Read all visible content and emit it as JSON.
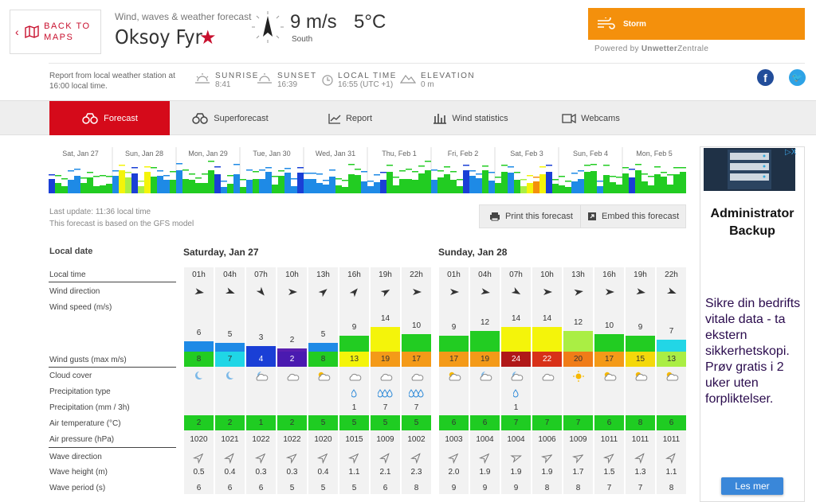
{
  "header": {
    "back_label": "BACK TO MAPS",
    "subtitle": "Wind, waves & weather forecast",
    "spot_name": "Oksoy Fyr",
    "wind_speed": "9 m/s",
    "temperature": "5°C",
    "wind_direction": "South",
    "storm_label": "Storm",
    "powered_by": "Powered by",
    "powered_brand_bold": "Unwetter",
    "powered_brand": "Zentrale"
  },
  "info": {
    "report": "Report from local weather station at 16:00 local time.",
    "sunrise_title": "SUNRISE",
    "sunrise_value": "8:41",
    "sunset_title": "SUNSET",
    "sunset_value": "16:39",
    "localtime_title": "LOCAL TIME",
    "localtime_value": "16:55 (UTC +1)",
    "elevation_title": "ELEVATION",
    "elevation_value": "0 m"
  },
  "tabs": [
    "Forecast",
    "Superforecast",
    "Report",
    "Wind statistics",
    "Webcams"
  ],
  "overview_days": [
    "Sat, Jan 27",
    "Sun, Jan 28",
    "Mon, Jan 29",
    "Tue, Jan 30",
    "Wed, Jan 31",
    "Thu, Feb 1",
    "Fri, Feb 2",
    "Sat, Feb 3",
    "Sun, Feb 4",
    "Mon, Feb 5"
  ],
  "meta": {
    "last_update": "Last update: 11:36 local time",
    "model": "This forecast is based on the GFS model",
    "print_label": "Print this forecast",
    "embed_label": "Embed this forecast"
  },
  "table": {
    "local_date_label": "Local date",
    "days": [
      "Saturday, Jan 27",
      "Sunday, Jan 28"
    ],
    "labels": {
      "local_time": "Local time",
      "wind_direction": "Wind direction",
      "wind_speed": "Wind speed  (m/s)",
      "wind_gusts": "Wind gusts  (max m/s)",
      "cloud_cover": "Cloud cover",
      "precip_type": "Precipitation type",
      "precip": "Precipitation  (mm / 3h)",
      "air_temp": "Air temperature  (°C)",
      "air_pressure": "Air pressure  (hPa)",
      "wave_direction": "Wave direction",
      "wave_height": "Wave height  (m)",
      "wave_period": "Wave period  (s)"
    },
    "hours": [
      "01h",
      "04h",
      "07h",
      "10h",
      "13h",
      "16h",
      "19h",
      "22h",
      "01h",
      "04h",
      "07h",
      "10h",
      "13h",
      "16h",
      "19h",
      "22h"
    ],
    "wind_speed": [
      6,
      5,
      3,
      2,
      5,
      9,
      14,
      10,
      9,
      12,
      14,
      14,
      12,
      10,
      9,
      7
    ],
    "wind_colors": [
      "#1e8ae6",
      "#1e8ae6",
      "#1a3fd6",
      "#5a1fb0",
      "#1e8ae6",
      "#22cc22",
      "#f4f40a",
      "#22cc22",
      "#22cc22",
      "#22cc22",
      "#f4f40a",
      "#f4f40a",
      "#aaee44",
      "#22cc22",
      "#22cc22",
      "#22d6e6"
    ],
    "wind_gusts": [
      8,
      7,
      4,
      2,
      8,
      13,
      19,
      17,
      17,
      19,
      24,
      22,
      20,
      17,
      15,
      13
    ],
    "gust_colors": [
      "#22cc22",
      "#1fd6e6",
      "#1a3fd6",
      "#4a1ab0",
      "#22cc22",
      "#f4f40a",
      "#f49a18",
      "#f49a18",
      "#f49a18",
      "#f49a18",
      "#b01818",
      "#d83018",
      "#f07c18",
      "#f49a18",
      "#f4d80a",
      "#aaee44"
    ],
    "wind_dir_angles": [
      100,
      110,
      140,
      90,
      50,
      40,
      60,
      90,
      90,
      100,
      120,
      90,
      80,
      90,
      100,
      110
    ],
    "cloud": [
      "moon",
      "moon",
      "moon-cloud",
      "cloud",
      "sun-cloud",
      "cloud",
      "cloud",
      "cloud",
      "sun-cloud",
      "moon-cloud",
      "moon-cloud",
      "cloud",
      "sun",
      "sun-cloud",
      "sun-cloud",
      "sun-cloud"
    ],
    "precip_type": [
      "",
      "",
      "",
      "",
      "",
      "drop1",
      "drop3",
      "drop3",
      "",
      "",
      "drop1",
      "",
      "",
      "",
      "",
      ""
    ],
    "precip": [
      "",
      "",
      "",
      "",
      "",
      "1",
      "7",
      "7",
      "",
      "",
      "1",
      "",
      "",
      "",
      "",
      ""
    ],
    "air_temp": [
      2,
      2,
      1,
      2,
      5,
      5,
      5,
      5,
      6,
      6,
      7,
      7,
      7,
      6,
      8,
      6
    ],
    "air_pressure": [
      1020,
      1021,
      1022,
      1022,
      1020,
      1015,
      1009,
      1002,
      1003,
      1004,
      1004,
      1006,
      1009,
      1011,
      1011,
      1011
    ],
    "wave_dir_angles": [
      45,
      40,
      45,
      50,
      45,
      45,
      40,
      40,
      45,
      45,
      70,
      60,
      60,
      50,
      40,
      40
    ],
    "wave_height": [
      "0.5",
      "0.4",
      "0.3",
      "0.3",
      "0.4",
      "1.1",
      "2.1",
      "2.3",
      "2.0",
      "1.9",
      "1.9",
      "1.9",
      "1.7",
      "1.5",
      "1.3",
      "1.1"
    ],
    "wave_period": [
      6,
      6,
      6,
      5,
      5,
      5,
      6,
      8,
      9,
      9,
      9,
      8,
      8,
      7,
      7,
      8
    ]
  },
  "ad": {
    "title": "Administrator Backup",
    "text": "Sikre din bedrifts vitale data - ta ekstern sikkerhetskopi. Prøv gratis i 2 uker uten forpliktelser.",
    "button": "Les mer",
    "badge": "▷X"
  },
  "colors": {
    "brand_red": "#d50a1a",
    "storm_orange": "#f4900c"
  }
}
